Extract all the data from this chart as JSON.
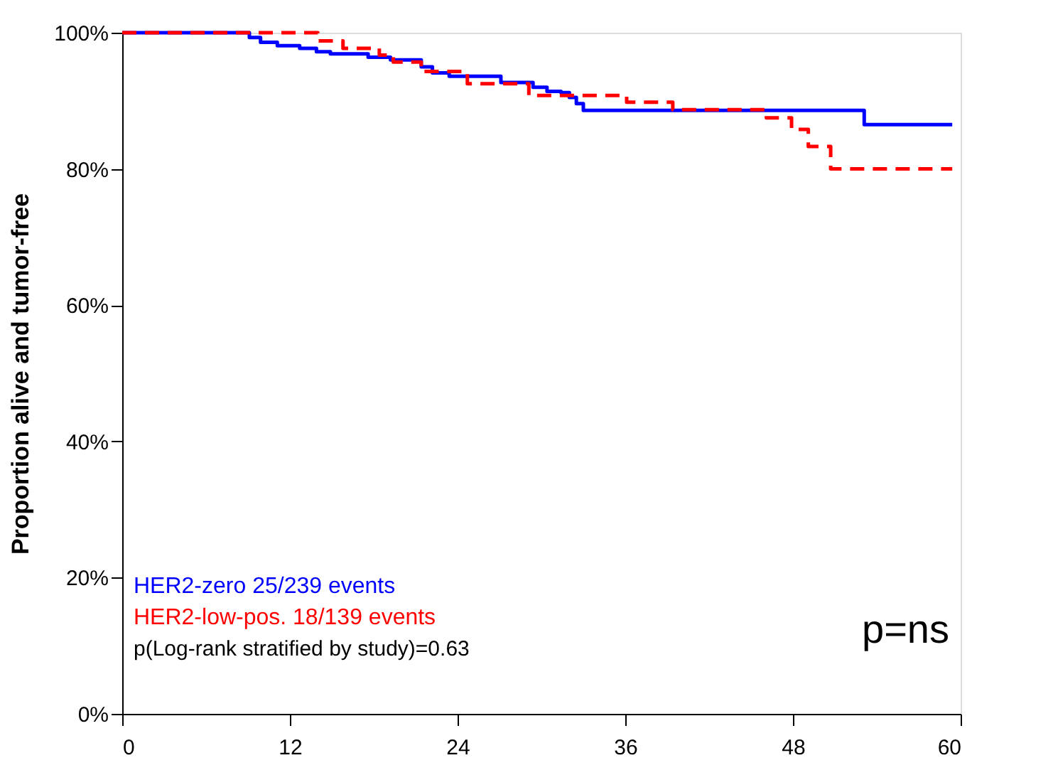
{
  "chart_data": {
    "type": "step",
    "ylabel": "Proportion alive and tumor-free",
    "xlim": [
      0,
      60
    ],
    "xticks": [
      0,
      12,
      24,
      36,
      48,
      60
    ],
    "ylim": [
      0,
      100
    ],
    "yticks": [
      {
        "value": 0,
        "label": "0%"
      },
      {
        "value": 20,
        "label": "20%"
      },
      {
        "value": 40,
        "label": "40%"
      },
      {
        "value": 60,
        "label": "60%"
      },
      {
        "value": 80,
        "label": "80%"
      },
      {
        "value": 100,
        "label": "100%"
      }
    ],
    "grid": false,
    "legend": "bottom left",
    "marker": "none",
    "series": [
      {
        "name": "HER2-zero 25/239 events",
        "color": "#0000ff",
        "line_style": "solid",
        "x": [
          0,
          9.1,
          9.9,
          11.1,
          12.7,
          13.9,
          14.9,
          17.6,
          19.2,
          21.4,
          22.2,
          23.4,
          27.1,
          29.4,
          30.4,
          31.4,
          32.0,
          32.5,
          33.0,
          53.1,
          59.4
        ],
        "values": [
          100,
          99.3,
          98.6,
          98.1,
          97.7,
          97.2,
          96.9,
          96.4,
          96.0,
          95.0,
          94.1,
          93.6,
          92.7,
          92.0,
          91.4,
          91.2,
          90.5,
          89.6,
          88.6,
          86.5,
          86.5
        ]
      },
      {
        "name": "HER2-low-pos. 18/139 events",
        "color": "#ff0000",
        "line_style": "dashed",
        "x": [
          0,
          14.0,
          15.8,
          18.4,
          19.4,
          21.4,
          24.7,
          29.1,
          36.1,
          39.4,
          46.1,
          47.9,
          49.1,
          50.7,
          59.4
        ],
        "values": [
          100,
          98.8,
          97.7,
          96.7,
          95.7,
          94.3,
          92.5,
          90.8,
          89.8,
          88.7,
          87.5,
          85.8,
          83.3,
          80.0,
          80.0
        ]
      }
    ],
    "annotations": [
      "p(Log-rank stratified by study)=0.63",
      "p=ns"
    ]
  }
}
